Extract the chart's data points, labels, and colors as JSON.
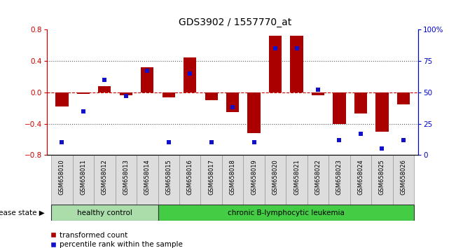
{
  "title": "GDS3902 / 1557770_at",
  "samples": [
    "GSM658010",
    "GSM658011",
    "GSM658012",
    "GSM658013",
    "GSM658014",
    "GSM658015",
    "GSM658016",
    "GSM658017",
    "GSM658018",
    "GSM658019",
    "GSM658020",
    "GSM658021",
    "GSM658022",
    "GSM658023",
    "GSM658024",
    "GSM658025",
    "GSM658026"
  ],
  "red_values": [
    -0.18,
    -0.02,
    0.08,
    -0.04,
    0.32,
    -0.06,
    0.45,
    -0.1,
    -0.25,
    -0.52,
    0.72,
    0.72,
    -0.04,
    -0.4,
    -0.27,
    -0.5,
    -0.15
  ],
  "blue_values": [
    10,
    35,
    60,
    47,
    67,
    10,
    65,
    10,
    38,
    10,
    85,
    85,
    52,
    12,
    17,
    5,
    12
  ],
  "healthy_count": 5,
  "bar_color": "#aa0000",
  "dot_color": "#1111cc",
  "healthy_label": "healthy control",
  "disease_label": "chronic B-lymphocytic leukemia",
  "healthy_color": "#aaddaa",
  "disease_color": "#44cc44",
  "ylim_left": [
    -0.8,
    0.8
  ],
  "ylim_right": [
    0,
    100
  ],
  "yticks_left": [
    -0.8,
    -0.4,
    0.0,
    0.4,
    0.8
  ],
  "yticks_right": [
    0,
    25,
    50,
    75,
    100
  ],
  "dotted_grid": [
    -0.4,
    0.4
  ],
  "dashed_zero": 0.0,
  "legend_red": "transformed count",
  "legend_blue": "percentile rank within the sample",
  "left_tick_color": "#cc0000",
  "right_tick_color": "#0000cc",
  "bg_color": "#ffffff",
  "label_bg": "#dddddd",
  "label_border": "#999999"
}
